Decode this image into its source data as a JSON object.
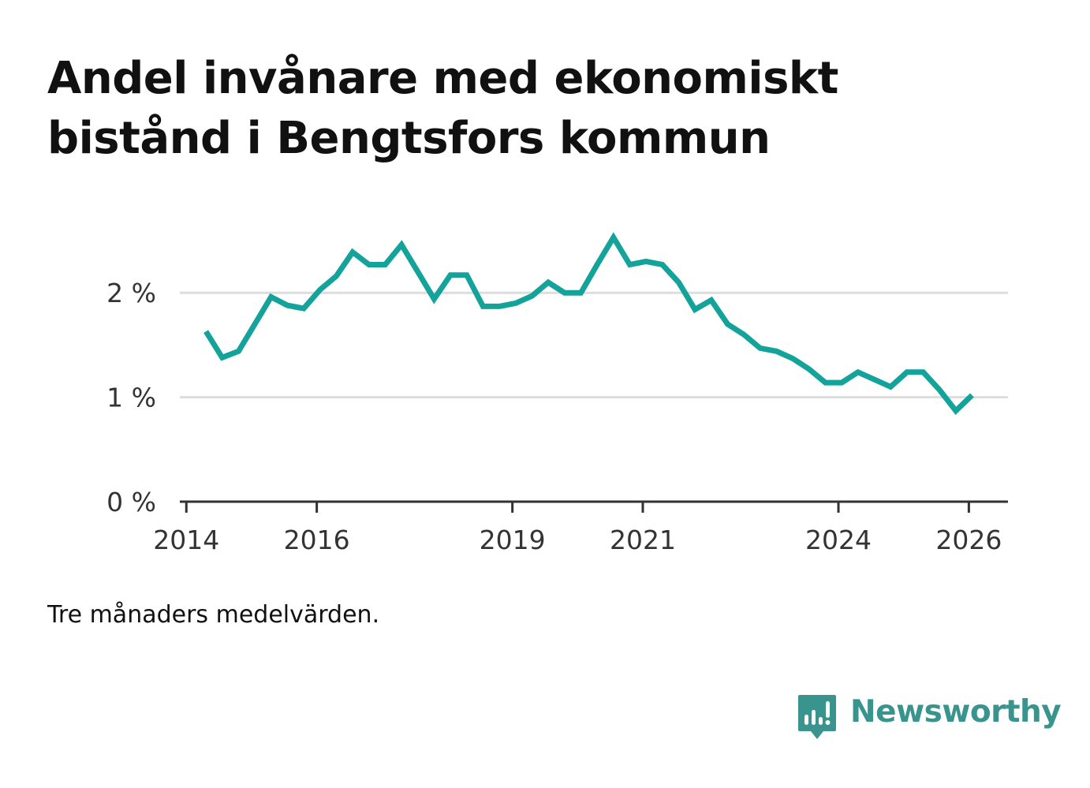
{
  "title": "Andel invånare med ekonomiskt bistånd i Bengtsfors kommun",
  "note": "Tre månaders medelvärden.",
  "brand": {
    "name": "Newsworthy",
    "icon": "newsworthy-chart-icon",
    "color": "#3a948e"
  },
  "colors": {
    "line": "#14a39a",
    "grid": "#dddddd",
    "axis": "#333333"
  },
  "chart_data": {
    "type": "line",
    "title": "Andel invånare med ekonomiskt bistånd i Bengtsfors kommun",
    "xlabel": "",
    "ylabel": "",
    "xlim": [
      2013.9,
      2026.6
    ],
    "ylim": [
      0,
      2.5
    ],
    "y_ticks": [
      {
        "value": 0,
        "label": "0 %"
      },
      {
        "value": 1,
        "label": "1 %"
      },
      {
        "value": 2,
        "label": "2 %"
      }
    ],
    "x_ticks": [
      {
        "value": 2014,
        "label": "2014"
      },
      {
        "value": 2016,
        "label": "2016"
      },
      {
        "value": 2019,
        "label": "2019"
      },
      {
        "value": 2021,
        "label": "2021"
      },
      {
        "value": 2024,
        "label": "2024"
      },
      {
        "value": 2026,
        "label": "2026"
      }
    ],
    "grid": true,
    "series": [
      {
        "name": "Andel invånare med ekonomiskt bistånd",
        "x": [
          2014.3,
          2014.55,
          2014.8,
          2015.05,
          2015.3,
          2015.55,
          2015.8,
          2016.05,
          2016.3,
          2016.55,
          2016.8,
          2017.05,
          2017.3,
          2017.55,
          2017.8,
          2018.05,
          2018.3,
          2018.55,
          2018.8,
          2019.05,
          2019.3,
          2019.55,
          2019.8,
          2020.05,
          2020.3,
          2020.55,
          2020.8,
          2021.05,
          2021.3,
          2021.55,
          2021.8,
          2022.05,
          2022.3,
          2022.55,
          2022.8,
          2023.05,
          2023.3,
          2023.55,
          2023.8,
          2024.05,
          2024.3,
          2024.55,
          2024.8,
          2025.05,
          2025.3,
          2025.55,
          2025.8,
          2026.05
        ],
        "values": [
          1.63,
          1.38,
          1.44,
          1.7,
          1.96,
          1.88,
          1.85,
          2.03,
          2.16,
          2.39,
          2.27,
          2.27,
          2.46,
          2.2,
          1.94,
          2.17,
          2.17,
          1.87,
          1.87,
          1.9,
          1.97,
          2.1,
          2.0,
          2.0,
          2.27,
          2.53,
          2.27,
          2.3,
          2.27,
          2.1,
          1.84,
          1.93,
          1.7,
          1.6,
          1.47,
          1.44,
          1.37,
          1.27,
          1.14,
          1.14,
          1.24,
          1.17,
          1.1,
          1.24,
          1.24,
          1.07,
          0.87,
          1.02
        ]
      }
    ]
  }
}
